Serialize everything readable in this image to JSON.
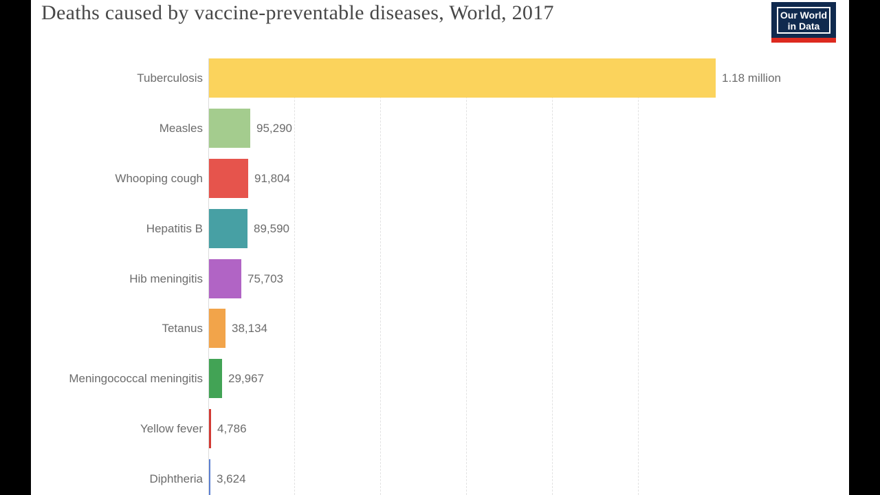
{
  "logo": {
    "line1": "Our World",
    "line2": "in Data"
  },
  "chart_data": {
    "type": "bar",
    "orientation": "horizontal",
    "title": "Deaths caused by vaccine-preventable diseases, World, 2017",
    "xlabel": "",
    "ylabel": "",
    "xlim": [
      0,
      1180000
    ],
    "grid": "vertical-dashed",
    "legend_position": "none",
    "categories": [
      "Tuberculosis",
      "Measles",
      "Whooping cough",
      "Hepatitis B",
      "Hib meningitis",
      "Tetanus",
      "Meningococcal meningitis",
      "Yellow fever",
      "Diphtheria"
    ],
    "values": [
      1180000,
      95290,
      91804,
      89590,
      75703,
      38134,
      29967,
      4786,
      3624
    ],
    "value_labels": [
      "1.18 million",
      "95,290",
      "91,804",
      "89,590",
      "75,703",
      "38,134",
      "29,967",
      "4,786",
      "3,624"
    ],
    "bar_colors": [
      "#fbd35c",
      "#a4cc8e",
      "#e6544c",
      "#47a0a4",
      "#b164c5",
      "#f2a44a",
      "#42a355",
      "#d23a34",
      "#5b7fd1"
    ],
    "gridline_values": [
      200000,
      400000,
      600000,
      800000,
      1000000
    ],
    "label_color": "#6b6b6b",
    "title_color": "#474747",
    "logo_bg_color": "#102a4e",
    "logo_stripe_color": "#dd2a1f"
  }
}
